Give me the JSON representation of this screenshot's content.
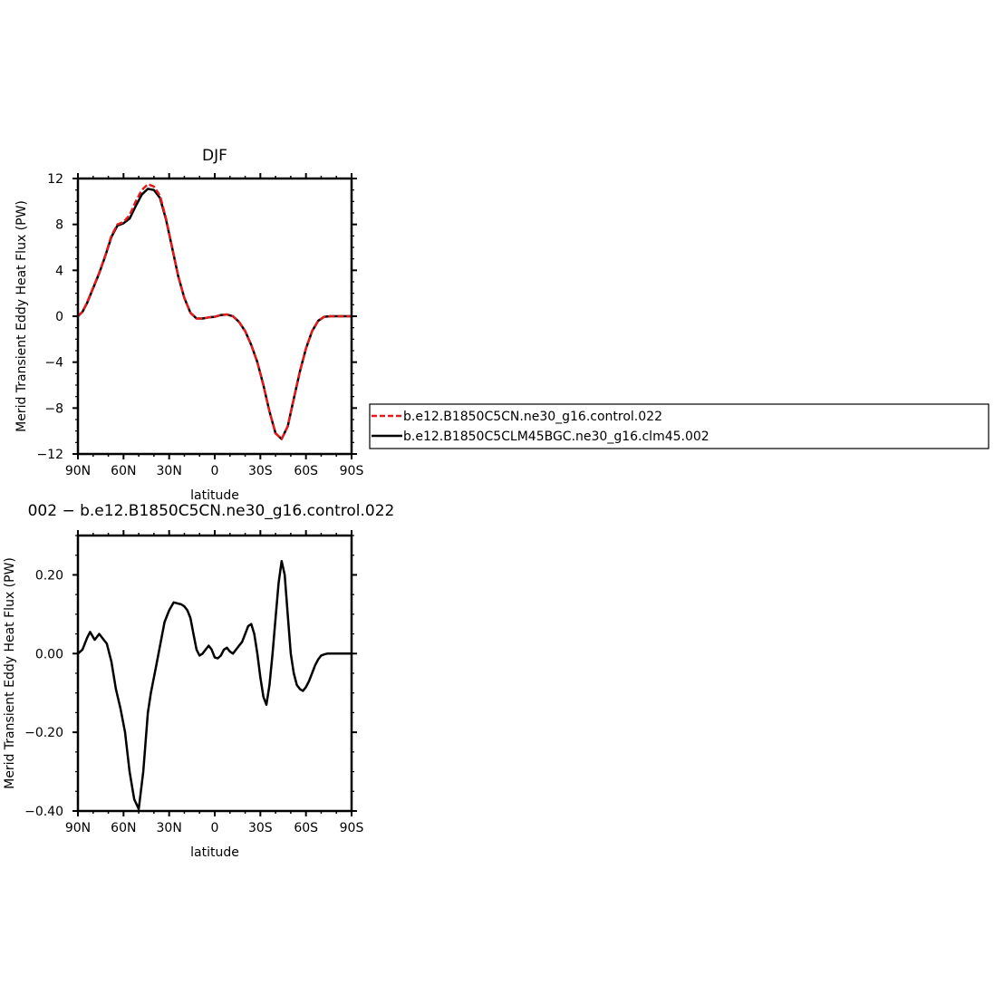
{
  "chart_data": [
    {
      "type": "line",
      "title": "DJF",
      "xlabel": "latitude",
      "ylabel": "Merid Transient Eddy Heat Flux (PW)",
      "xlim": [
        90,
        -90
      ],
      "ylim": [
        -12,
        12
      ],
      "x_ticks": [
        90,
        60,
        30,
        0,
        -30,
        -60,
        -90
      ],
      "x_tick_labels": [
        "90N",
        "60N",
        "30N",
        "0",
        "30S",
        "60S",
        "90S"
      ],
      "y_ticks": [
        12,
        8,
        4,
        0,
        -4,
        -8,
        -12
      ],
      "y_tick_labels": [
        "12",
        "8",
        "4",
        "0",
        "−4",
        "−8",
        "−12"
      ],
      "legend_position": "right-outside",
      "series": [
        {
          "name": "b.e12.B1850C5CN.ne30_g16.control.022",
          "color": "#e41a1c",
          "dashed": true,
          "x": [
            90,
            87,
            84,
            80,
            76,
            72,
            68,
            64,
            60,
            56,
            52,
            48,
            44,
            40,
            36,
            32,
            28,
            24,
            20,
            16,
            12,
            8,
            4,
            0,
            -4,
            -8,
            -12,
            -16,
            -20,
            -24,
            -28,
            -32,
            -36,
            -40,
            -44,
            -48,
            -52,
            -56,
            -60,
            -64,
            -68,
            -72,
            -76,
            -80,
            -84,
            -88,
            -90
          ],
          "y": [
            0.0,
            0.4,
            1.2,
            2.5,
            3.8,
            5.3,
            7.0,
            8.0,
            8.2,
            8.8,
            10.0,
            11.0,
            11.5,
            11.3,
            10.5,
            8.5,
            6.0,
            3.5,
            1.6,
            0.3,
            -0.2,
            -0.2,
            -0.1,
            -0.05,
            0.1,
            0.15,
            0.0,
            -0.5,
            -1.3,
            -2.5,
            -4.0,
            -6.0,
            -8.3,
            -10.2,
            -10.7,
            -9.6,
            -7.2,
            -4.8,
            -2.8,
            -1.3,
            -0.4,
            -0.05,
            0.0,
            0.0,
            0.0,
            0.0,
            0.0
          ]
        },
        {
          "name": "b.e12.B1850C5CLM45BGC.ne30_g16.clm45.002",
          "color": "#000000",
          "dashed": false,
          "x": [
            90,
            87,
            84,
            80,
            76,
            72,
            68,
            64,
            60,
            56,
            52,
            48,
            44,
            40,
            36,
            32,
            28,
            24,
            20,
            16,
            12,
            8,
            4,
            0,
            -4,
            -8,
            -12,
            -16,
            -20,
            -24,
            -28,
            -32,
            -36,
            -40,
            -44,
            -48,
            -52,
            -56,
            -60,
            -64,
            -68,
            -72,
            -76,
            -80,
            -84,
            -88,
            -90
          ],
          "y": [
            0.0,
            0.38,
            1.15,
            2.45,
            3.75,
            5.25,
            6.9,
            7.9,
            8.1,
            8.5,
            9.6,
            10.6,
            11.1,
            11.0,
            10.3,
            8.4,
            5.95,
            3.48,
            1.6,
            0.3,
            -0.2,
            -0.2,
            -0.1,
            -0.05,
            0.1,
            0.15,
            0.0,
            -0.5,
            -1.3,
            -2.5,
            -4.0,
            -6.0,
            -8.3,
            -10.2,
            -10.7,
            -9.6,
            -7.2,
            -4.8,
            -2.8,
            -1.3,
            -0.4,
            -0.05,
            0.0,
            0.0,
            0.0,
            0.0,
            0.0
          ]
        }
      ]
    },
    {
      "type": "line",
      "title": "002 − b.e12.B1850C5CN.ne30_g16.control.022",
      "xlabel": "latitude",
      "ylabel": "Merid Transient Eddy Heat Flux (PW)",
      "xlim": [
        90,
        -90
      ],
      "ylim": [
        -0.4,
        0.3
      ],
      "x_ticks": [
        90,
        60,
        30,
        0,
        -30,
        -60,
        -90
      ],
      "x_tick_labels": [
        "90N",
        "60N",
        "30N",
        "0",
        "30S",
        "60S",
        "90S"
      ],
      "y_ticks": [
        0.2,
        0.0,
        -0.2,
        -0.4
      ],
      "y_tick_labels": [
        "0.20",
        "0.00",
        "−0.20",
        "−0.40"
      ],
      "series": [
        {
          "color": "#000000",
          "dashed": false,
          "x": [
            90,
            87,
            84,
            82,
            79,
            76,
            74,
            71,
            68,
            65,
            62,
            59,
            56,
            53,
            50,
            47,
            45,
            44,
            42,
            39,
            36,
            33,
            30,
            27,
            25,
            22,
            20,
            18,
            16,
            14,
            12,
            10,
            8,
            6,
            4,
            2,
            0,
            -2,
            -4,
            -6,
            -8,
            -10,
            -12,
            -14,
            -16,
            -18,
            -20,
            -22,
            -24,
            -26,
            -28,
            -30,
            -32,
            -34,
            -36,
            -38,
            -40,
            -42,
            -44,
            -46,
            -48,
            -50,
            -52,
            -54,
            -56,
            -58,
            -60,
            -62,
            -64,
            -66,
            -68,
            -70,
            -72,
            -74,
            -76,
            -78,
            -80,
            -82,
            -84,
            -86,
            -88,
            -90
          ],
          "y": [
            0.0,
            0.01,
            0.04,
            0.055,
            0.035,
            0.05,
            0.04,
            0.025,
            -0.02,
            -0.09,
            -0.14,
            -0.2,
            -0.3,
            -0.37,
            -0.395,
            -0.3,
            -0.2,
            -0.15,
            -0.1,
            -0.04,
            0.02,
            0.08,
            0.11,
            0.13,
            0.128,
            0.125,
            0.12,
            0.11,
            0.09,
            0.05,
            0.01,
            -0.005,
            0.0,
            0.01,
            0.02,
            0.01,
            -0.01,
            -0.012,
            -0.005,
            0.01,
            0.015,
            0.005,
            0.0,
            0.01,
            0.02,
            0.03,
            0.05,
            0.07,
            0.075,
            0.05,
            0.0,
            -0.06,
            -0.11,
            -0.13,
            -0.08,
            0.0,
            0.09,
            0.18,
            0.235,
            0.2,
            0.1,
            0.0,
            -0.05,
            -0.08,
            -0.09,
            -0.095,
            -0.085,
            -0.07,
            -0.05,
            -0.03,
            -0.015,
            -0.005,
            -0.002,
            0.0,
            0.0,
            0.0,
            0.0,
            0.0,
            0.0,
            0.0,
            0.0,
            0.0
          ]
        }
      ]
    }
  ]
}
